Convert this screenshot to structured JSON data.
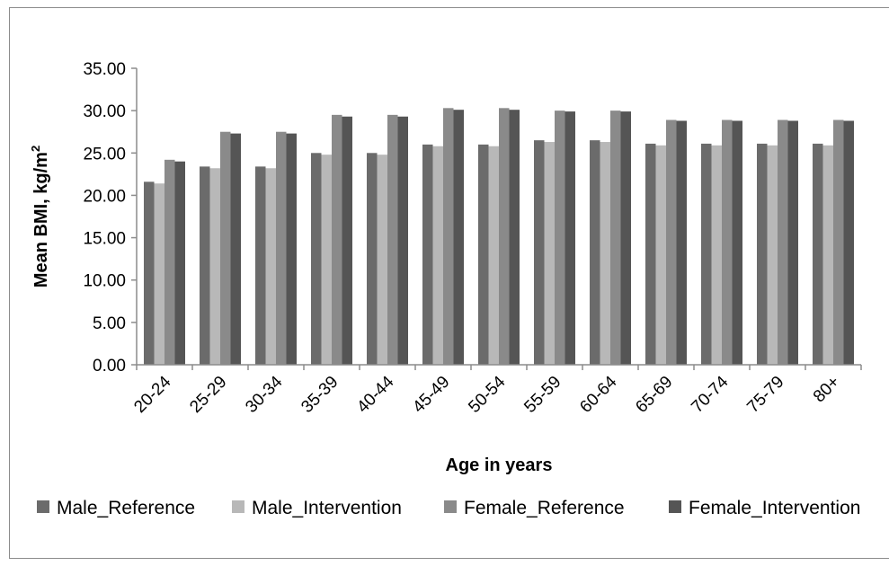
{
  "chart_data": {
    "type": "bar",
    "xlabel": "Age in years",
    "ylabel": "Mean BMI, kg/m",
    "ylabel_superscript": "2",
    "ylim": [
      0,
      35
    ],
    "yticks": [
      "0.00",
      "5.00",
      "10.00",
      "15.00",
      "20.00",
      "25.00",
      "30.00",
      "35.00"
    ],
    "ytick_values": [
      0,
      5,
      10,
      15,
      20,
      25,
      30,
      35
    ],
    "grid": false,
    "legend_position": "bottom",
    "categories": [
      "20-24",
      "25-29",
      "30-34",
      "35-39",
      "40-44",
      "45-49",
      "50-54",
      "55-59",
      "60-64",
      "65-69",
      "70-74",
      "75-79",
      "80+"
    ],
    "series": [
      {
        "name": "Male_Reference",
        "color": "#6b6b6b",
        "values": [
          21.6,
          23.4,
          23.4,
          25.0,
          25.0,
          26.0,
          26.0,
          26.5,
          26.5,
          26.1,
          26.1,
          26.1,
          26.1
        ]
      },
      {
        "name": "Male_Intervention",
        "color": "#b8b8b8",
        "values": [
          21.4,
          23.2,
          23.2,
          24.8,
          24.8,
          25.8,
          25.8,
          26.3,
          26.3,
          25.9,
          25.9,
          25.9,
          25.9
        ]
      },
      {
        "name": "Female_Reference",
        "color": "#8a8a8a",
        "values": [
          24.2,
          27.5,
          27.5,
          29.5,
          29.5,
          30.3,
          30.3,
          30.0,
          30.0,
          28.9,
          28.9,
          28.9,
          28.9
        ]
      },
      {
        "name": "Female_Intervention",
        "color": "#555555",
        "values": [
          24.0,
          27.3,
          27.3,
          29.3,
          29.3,
          30.1,
          30.1,
          29.9,
          29.9,
          28.8,
          28.8,
          28.8,
          28.8
        ]
      }
    ]
  }
}
